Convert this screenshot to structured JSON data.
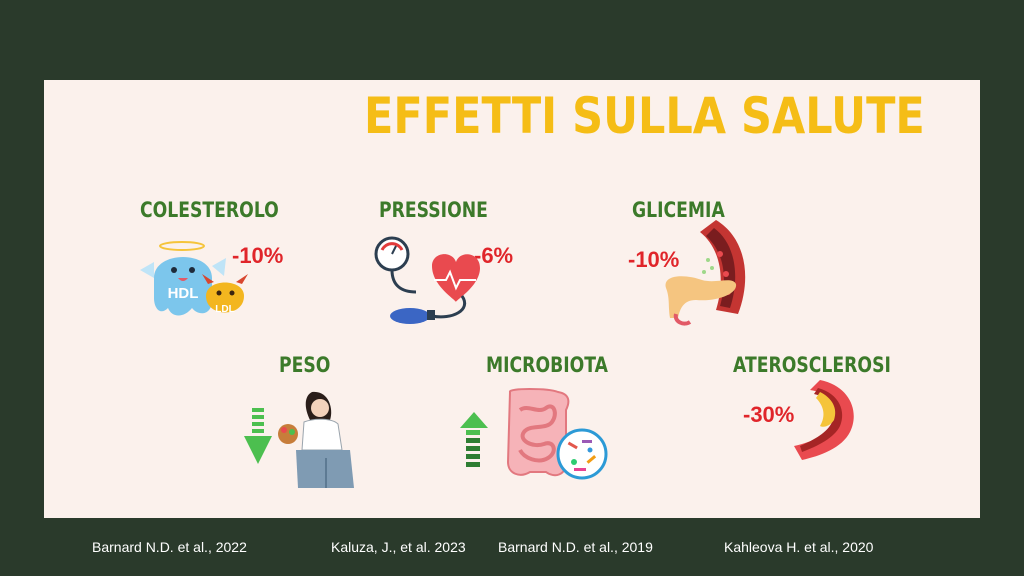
{
  "title": "EFFETTI SULLA SALUTE",
  "items": [
    {
      "label": "COLESTEROLO",
      "value": "-10%",
      "icon": "hdl-ldl-cholesterol-icon",
      "badges": [
        "HDL",
        "LDL"
      ]
    },
    {
      "label": "PRESSIONE",
      "value": "-6%",
      "icon": "blood-pressure-heart-icon"
    },
    {
      "label": "GLICEMIA",
      "value": "-10%",
      "icon": "pancreas-blood-vessel-icon"
    },
    {
      "label": "PESO",
      "value": "",
      "icon": "weight-loss-woman-icon",
      "trend": "down"
    },
    {
      "label": "MICROBIOTA",
      "value": "",
      "icon": "intestine-microbes-icon",
      "trend": "up"
    },
    {
      "label": "ATEROSCLEROSI",
      "value": "-30%",
      "icon": "artery-plaque-icon"
    }
  ],
  "references": [
    "Barnard N.D. et al., 2022",
    "Kaluza, J., et al. 2023",
    "Barnard N.D. et al., 2019",
    "Kahleova H. et al., 2020"
  ],
  "colors": {
    "background": "#2a3a2b",
    "panel": "#fbf1ec",
    "title": "#f5bd16",
    "label": "#3c7a2a",
    "value": "#e0252a",
    "trend_arrow": "#4cbf4f"
  }
}
